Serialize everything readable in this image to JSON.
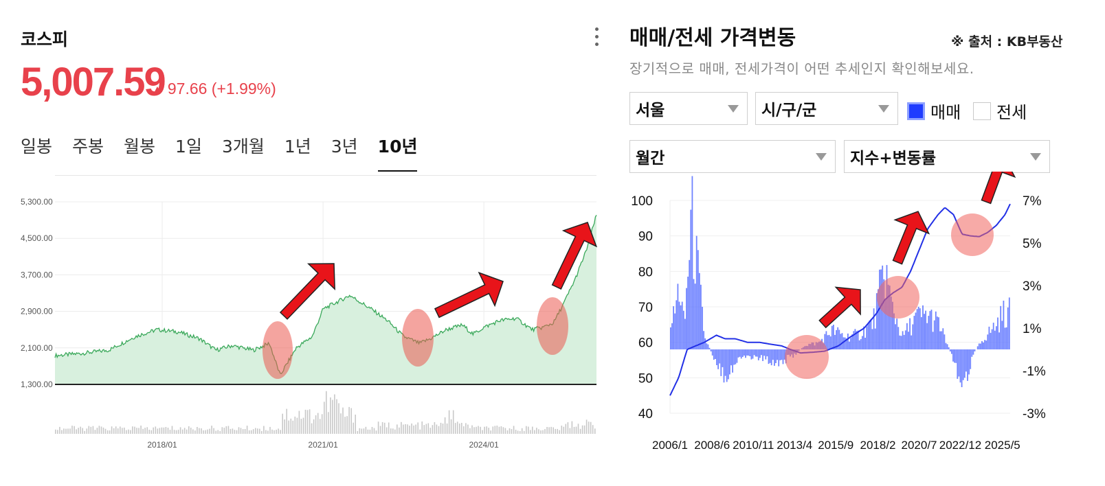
{
  "left": {
    "title": "코스피",
    "price": "5,007.59",
    "change": "97.66 (+1.99%)",
    "colors": {
      "up": "#e8414b",
      "line": "#3aa85a",
      "area": "#d8f0de"
    },
    "tabs": [
      {
        "label": "일봉",
        "active": false
      },
      {
        "label": "주봉",
        "active": false
      },
      {
        "label": "월봉",
        "active": false
      },
      {
        "label": "1일",
        "active": false
      },
      {
        "label": "3개월",
        "active": false
      },
      {
        "label": "1년",
        "active": false
      },
      {
        "label": "3년",
        "active": false
      },
      {
        "label": "10년",
        "active": true
      }
    ]
  },
  "right": {
    "title": "매매/전세 가격변동",
    "source": "※ 출처 : KB부동산",
    "description": "장기적으로 매매, 전세가격이 어떤 추세인지 확인해보세요.",
    "region_select": "서울",
    "district_select": "시/구/군",
    "period_select": "월간",
    "mode_select": "지수+변동률",
    "checkbox_sale": {
      "label": "매매",
      "checked": true
    },
    "checkbox_jeonse": {
      "label": "전세",
      "checked": false
    },
    "colors": {
      "accent": "#1f3cff"
    }
  },
  "chart_data": [
    {
      "type": "area",
      "title": "",
      "ylim": [
        1300,
        5300
      ],
      "y_ticks": [
        "5,300.00",
        "4,500.00",
        "3,700.00",
        "2,900.00",
        "2,100.00",
        "1,300.00"
      ],
      "x_ticks": [
        "2018/01",
        "2021/01",
        "2024/01"
      ],
      "grid": true,
      "series": [
        {
          "x": [
            2016.0,
            2016.5,
            2017.0,
            2017.5,
            2017.9,
            2018.3,
            2018.7,
            2019.0,
            2019.3,
            2019.7,
            2020.0,
            2020.2,
            2020.5,
            2020.8,
            2021.0,
            2021.5,
            2021.9,
            2022.2,
            2022.5,
            2022.8,
            2023.0,
            2023.3,
            2023.6,
            2023.8,
            2024.0,
            2024.3,
            2024.6,
            2024.9,
            2025.1,
            2025.3,
            2025.5,
            2025.7,
            2025.9,
            2026.1
          ],
          "values": [
            1930,
            1980,
            2050,
            2350,
            2500,
            2450,
            2300,
            2050,
            2150,
            2050,
            2200,
            1500,
            2100,
            2350,
            2950,
            3250,
            2950,
            2700,
            2350,
            2200,
            2300,
            2500,
            2600,
            2400,
            2550,
            2700,
            2750,
            2500,
            2550,
            2650,
            3100,
            3600,
            4200,
            5007.59
          ]
        }
      ],
      "volume_style": "bars"
    },
    {
      "type": "line+bar",
      "title": "",
      "y_left_ticks": [
        100,
        90,
        80,
        70,
        60,
        50,
        40
      ],
      "y_left_lim": [
        40,
        100
      ],
      "y_right_ticks": [
        "7%",
        "5%",
        "3%",
        "1%",
        "-1%",
        "-3%"
      ],
      "y_right_lim": [
        -3,
        7
      ],
      "x_ticks": [
        "2006/1",
        "2008/6",
        "2010/11",
        "2013/4",
        "2015/9",
        "2018/2",
        "2020/7",
        "2022/12",
        "2025/5"
      ],
      "series": [
        {
          "name": "매매",
          "type": "line",
          "x": [
            2006.0,
            2006.5,
            2007.0,
            2007.5,
            2008.0,
            2008.7,
            2009.2,
            2009.8,
            2010.5,
            2011.2,
            2011.8,
            2012.5,
            2013.0,
            2013.6,
            2014.3,
            2015.0,
            2015.8,
            2016.5,
            2017.3,
            2018.0,
            2018.5,
            2019.0,
            2019.5,
            2020.0,
            2020.5,
            2021.0,
            2021.6,
            2022.0,
            2022.5,
            2023.0,
            2023.5,
            2024.0,
            2024.5,
            2025.0,
            2025.5,
            2025.8
          ],
          "values": [
            45,
            50,
            58,
            59,
            60,
            62,
            61,
            61,
            60,
            60,
            59.5,
            59,
            58,
            57,
            57.2,
            57.5,
            59,
            61.5,
            64,
            68,
            72,
            74,
            75.5,
            80,
            86,
            92,
            96,
            98,
            96,
            90.5,
            90,
            89.8,
            91,
            93,
            96,
            99
          ]
        },
        {
          "name": "변동률",
          "type": "bar",
          "unit": "%",
          "x": [
            2006.2,
            2006.5,
            2006.8,
            2007.2,
            2008.0,
            2008.6,
            2009.2,
            2010.2,
            2011.2,
            2012.2,
            2013.0,
            2013.8,
            2014.6,
            2015.4,
            2016.2,
            2017.0,
            2017.8,
            2018.5,
            2018.8,
            2019.5,
            2020.3,
            2021.0,
            2021.6,
            2022.4,
            2022.8,
            2023.0,
            2023.6,
            2024.3,
            2024.9,
            2025.4
          ],
          "values": [
            1.5,
            3.0,
            1.0,
            6.2,
            0.5,
            -0.5,
            -1.2,
            -0.3,
            -0.4,
            -0.6,
            -0.4,
            0.2,
            0.3,
            0.9,
            0.6,
            0.7,
            1.3,
            3.8,
            2.2,
            0.6,
            1.5,
            1.6,
            1.2,
            -0.3,
            -1.2,
            -2.0,
            -0.2,
            0.6,
            1.1,
            1.7
          ]
        }
      ]
    }
  ]
}
